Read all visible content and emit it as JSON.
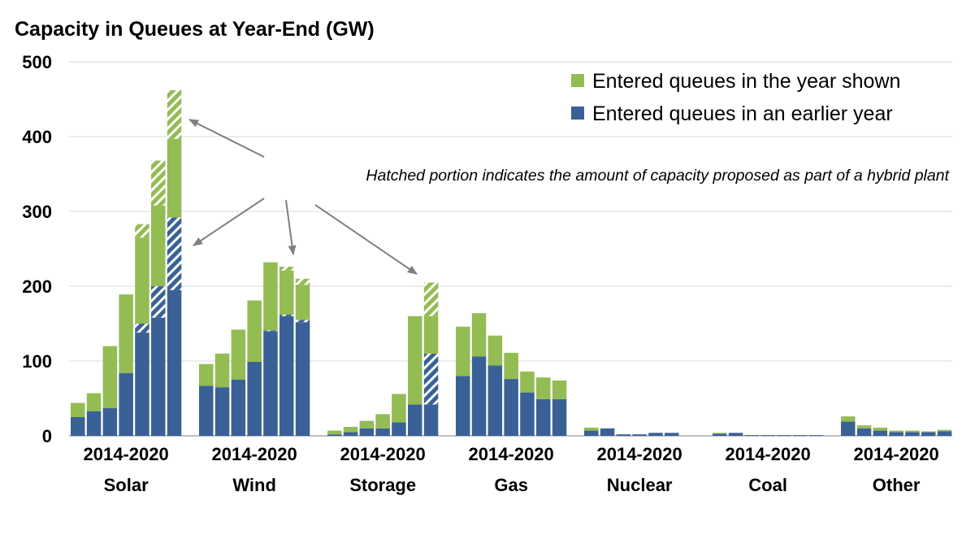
{
  "chart_data": {
    "type": "bar",
    "stacked": true,
    "title": "Capacity in Queues at Year-End (GW)",
    "xlabel": "",
    "ylabel": "",
    "ylim": [
      0,
      500
    ],
    "yticks": [
      0,
      100,
      200,
      300,
      400,
      500
    ],
    "grid": true,
    "legend_position": "top-right",
    "year_range_label": "2014-2020",
    "years": [
      "2014",
      "2015",
      "2016",
      "2017",
      "2018",
      "2019",
      "2020"
    ],
    "categories": [
      "Solar",
      "Wind",
      "Storage",
      "Gas",
      "Nuclear",
      "Coal",
      "Other"
    ],
    "series": [
      {
        "name": "Entered queues in the year shown",
        "color": "#93bc53"
      },
      {
        "name": "Entered queues in an earlier year",
        "color": "#3a6196"
      }
    ],
    "groups": [
      {
        "category": "Solar",
        "earlier": [
          25,
          33,
          37,
          84,
          150,
          200,
          292
        ],
        "new": [
          19,
          24,
          83,
          105,
          133,
          168,
          170
        ],
        "hybrid_earlier": [
          0,
          0,
          0,
          0,
          12,
          42,
          97
        ],
        "hybrid_new": [
          0,
          0,
          0,
          0,
          18,
          60,
          65
        ]
      },
      {
        "category": "Wind",
        "earlier": [
          67,
          65,
          75,
          99,
          141,
          162,
          155
        ],
        "new": [
          29,
          45,
          67,
          82,
          91,
          64,
          55
        ],
        "hybrid_earlier": [
          0,
          0,
          0,
          0,
          1,
          2,
          3
        ],
        "hybrid_new": [
          0,
          0,
          0,
          0,
          0,
          5,
          8
        ]
      },
      {
        "category": "Storage",
        "earlier": [
          2,
          5,
          10,
          10,
          18,
          42,
          110
        ],
        "new": [
          5,
          7,
          10,
          19,
          38,
          118,
          95
        ],
        "hybrid_earlier": [
          0,
          0,
          0,
          0,
          0,
          0,
          68
        ],
        "hybrid_new": [
          0,
          0,
          0,
          0,
          0,
          0,
          45
        ]
      },
      {
        "category": "Gas",
        "earlier": [
          80,
          106,
          94,
          76,
          58,
          49,
          49
        ],
        "new": [
          66,
          58,
          40,
          35,
          28,
          29,
          25
        ],
        "hybrid_earlier": [
          0,
          0,
          0,
          0,
          0,
          0,
          0
        ],
        "hybrid_new": [
          0,
          0,
          0,
          0,
          0,
          0,
          0
        ]
      },
      {
        "category": "Nuclear",
        "earlier": [
          7,
          10,
          2,
          2,
          4,
          4,
          0
        ],
        "new": [
          4,
          0,
          0,
          0,
          0,
          0,
          0
        ],
        "hybrid_earlier": [
          0,
          0,
          0,
          0,
          0,
          0,
          0
        ],
        "hybrid_new": [
          0,
          0,
          0,
          0,
          0,
          0,
          0
        ]
      },
      {
        "category": "Coal",
        "earlier": [
          3,
          4,
          1,
          1,
          1,
          1,
          1
        ],
        "new": [
          1,
          0,
          0,
          0,
          0,
          0,
          0
        ],
        "hybrid_earlier": [
          0,
          0,
          0,
          0,
          0,
          0,
          0
        ],
        "hybrid_new": [
          0,
          0,
          0,
          0,
          0,
          0,
          0
        ]
      },
      {
        "category": "Other",
        "earlier": [
          19,
          10,
          7,
          5,
          5,
          5,
          6
        ],
        "new": [
          7,
          4,
          4,
          2,
          2,
          1,
          2
        ],
        "hybrid_earlier": [
          0,
          0,
          0,
          0,
          0,
          0,
          0
        ],
        "hybrid_new": [
          0,
          0,
          0,
          0,
          0,
          0,
          0
        ]
      }
    ],
    "annotation": "Hatched portion indicates the amount of capacity proposed as part of a hybrid plant"
  }
}
